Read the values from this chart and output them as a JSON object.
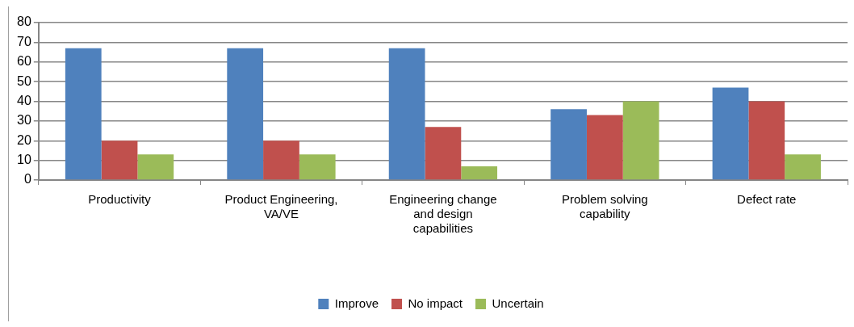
{
  "chart_data": {
    "type": "bar",
    "categories": [
      "Productivity",
      "Product Engineering, VA/VE",
      "Engineering change and design capabilities",
      "Problem solving capability",
      "Defect rate"
    ],
    "series": [
      {
        "name": "Improve",
        "color": "#4f81bd",
        "values": [
          67,
          67,
          67,
          36,
          47
        ]
      },
      {
        "name": "No impact",
        "color": "#c0504d",
        "values": [
          20,
          20,
          27,
          33,
          40
        ]
      },
      {
        "name": "Uncertain",
        "color": "#9bbb59",
        "values": [
          13,
          13,
          7,
          40,
          13
        ]
      }
    ],
    "ylim": [
      0,
      80
    ],
    "yticks": [
      0,
      10,
      20,
      30,
      40,
      50,
      60,
      70,
      80
    ],
    "grid": "y",
    "legend": "bottom"
  }
}
